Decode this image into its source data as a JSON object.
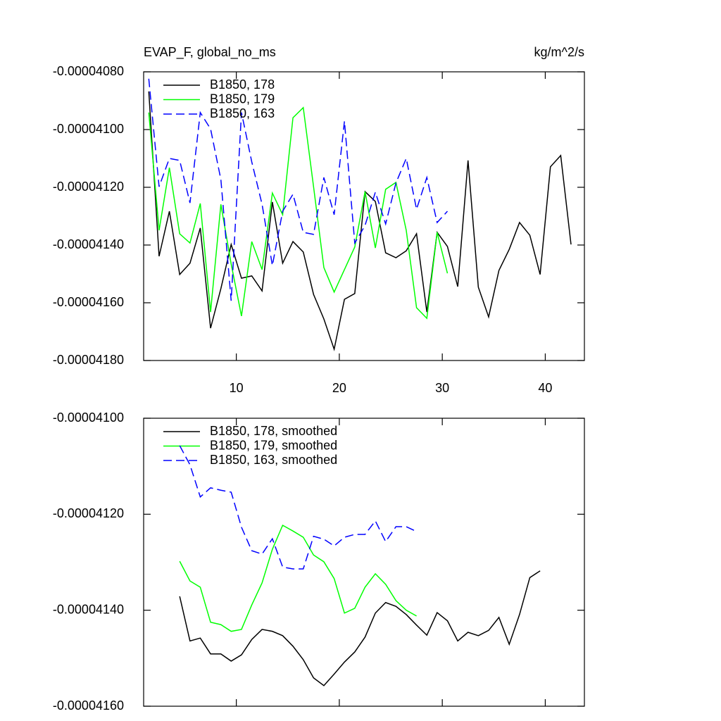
{
  "chart_data": [
    {
      "type": "line",
      "title": "EVAP_F, global_no_ms",
      "units": "kg/m^2/s",
      "xlim": [
        1,
        43.8
      ],
      "xticks": [
        10,
        20,
        30,
        40
      ],
      "xtick_labels": true,
      "ylim": [
        -4.18e-05,
        -4.08e-05
      ],
      "yticks": [
        {
          "value": -4.08e-05,
          "label": "-0.00004080"
        },
        {
          "value": -4.1e-05,
          "label": "-0.00004100"
        },
        {
          "value": -4.12e-05,
          "label": "-0.00004120"
        },
        {
          "value": -4.14e-05,
          "label": "-0.00004140"
        },
        {
          "value": -4.16e-05,
          "label": "-0.00004160"
        },
        {
          "value": -4.18e-05,
          "label": "-0.00004180"
        }
      ],
      "series": [
        {
          "name": "B1850, 178",
          "color": "#000000",
          "dash": false,
          "x": [
            1.5,
            2.5,
            3.5,
            4.5,
            5.5,
            6.5,
            7.5,
            8.5,
            9.5,
            10.5,
            11.5,
            12.5,
            13.5,
            14.5,
            15.5,
            16.5,
            17.5,
            18.5,
            19.5,
            20.5,
            21.5,
            22.5,
            23.5,
            24.5,
            25.5,
            26.5,
            27.5,
            28.5,
            29.5,
            30.5,
            31.5,
            32.5,
            33.5,
            34.5,
            35.5,
            36.5,
            37.5,
            38.5,
            39.5,
            40.5,
            41.5,
            42.5
          ],
          "values": [
            -4.0868e-05,
            -4.1439e-05,
            -4.1283e-05,
            -4.1502e-05,
            -4.1463e-05,
            -4.1341e-05,
            -4.1688e-05,
            -4.1551e-05,
            -4.1398e-05,
            -4.1515e-05,
            -4.1507e-05,
            -4.1559e-05,
            -4.1251e-05,
            -4.1463e-05,
            -4.1388e-05,
            -4.1424e-05,
            -4.1571e-05,
            -4.1656e-05,
            -4.1761e-05,
            -4.1588e-05,
            -4.1568e-05,
            -4.1215e-05,
            -4.1249e-05,
            -4.1427e-05,
            -4.1444e-05,
            -4.142e-05,
            -4.1361e-05,
            -4.1632e-05,
            -4.1356e-05,
            -4.1405e-05,
            -4.1544e-05,
            -4.1107e-05,
            -4.1546e-05,
            -4.1649e-05,
            -4.1488e-05,
            -4.1415e-05,
            -4.1322e-05,
            -4.1366e-05,
            -4.1502e-05,
            -4.1129e-05,
            -4.109e-05,
            -4.1398e-05
          ]
        },
        {
          "name": "B1850, 179",
          "color": "#00ff00",
          "dash": false,
          "x": [
            1.5,
            2.5,
            3.5,
            4.5,
            5.5,
            6.5,
            7.5,
            8.5,
            9.5,
            10.5,
            11.5,
            12.5,
            13.5,
            14.5,
            15.5,
            16.5,
            17.5,
            18.5,
            19.5,
            20.5,
            21.5,
            22.5,
            23.5,
            24.5,
            25.5,
            26.5,
            27.5,
            28.5,
            29.5,
            30.5
          ],
          "values": [
            -4.0941e-05,
            -4.1349e-05,
            -4.1132e-05,
            -4.1361e-05,
            -4.1393e-05,
            -4.1256e-05,
            -4.1632e-05,
            -4.1259e-05,
            -4.1466e-05,
            -4.1646e-05,
            -4.1388e-05,
            -4.1485e-05,
            -4.122e-05,
            -4.1295e-05,
            -4.0959e-05,
            -4.0924e-05,
            -4.1198e-05,
            -4.1478e-05,
            -4.1563e-05,
            -4.1485e-05,
            -4.1407e-05,
            -4.1215e-05,
            -4.141e-05,
            -4.1207e-05,
            -4.1183e-05,
            -4.1349e-05,
            -4.1617e-05,
            -4.1654e-05,
            -4.1356e-05,
            -4.1498e-05
          ]
        },
        {
          "name": "B1850, 163",
          "color": "#0000ff",
          "dash": true,
          "x": [
            1.5,
            2.5,
            3.5,
            4.5,
            5.5,
            6.5,
            7.5,
            8.5,
            9.5,
            10.5,
            11.5,
            12.5,
            13.5,
            14.5,
            15.5,
            16.5,
            17.5,
            18.5,
            19.5,
            20.5,
            21.5,
            22.5,
            23.5,
            24.5,
            25.5,
            26.5,
            27.5,
            28.5,
            29.5,
            30.5
          ],
          "values": [
            -4.0824e-05,
            -4.1198e-05,
            -4.11e-05,
            -4.1107e-05,
            -4.1254e-05,
            -4.0941e-05,
            -4.0998e-05,
            -4.1173e-05,
            -4.1593e-05,
            -4.0941e-05,
            -4.1112e-05,
            -4.1259e-05,
            -4.1471e-05,
            -4.1283e-05,
            -4.1224e-05,
            -4.1356e-05,
            -4.1363e-05,
            -4.1166e-05,
            -4.1295e-05,
            -4.0971e-05,
            -4.1393e-05,
            -4.1332e-05,
            -4.1217e-05,
            -4.1327e-05,
            -4.1185e-05,
            -4.11e-05,
            -4.1276e-05,
            -4.1166e-05,
            -4.1322e-05,
            -4.1283e-05
          ]
        }
      ]
    },
    {
      "type": "line",
      "xlim": [
        1,
        43.8
      ],
      "xticks": [
        10,
        20,
        30,
        40
      ],
      "xtick_labels": false,
      "ylim": [
        -4.16e-05,
        -4.1e-05
      ],
      "yticks": [
        {
          "value": -4.1e-05,
          "label": "-0.00004100"
        },
        {
          "value": -4.12e-05,
          "label": "-0.00004120"
        },
        {
          "value": -4.14e-05,
          "label": "-0.00004140"
        },
        {
          "value": -4.16e-05,
          "label": "-0.00004160"
        }
      ],
      "series": [
        {
          "name": "B1850, 178, smoothed",
          "color": "#000000",
          "dash": false,
          "x": [
            4.5,
            5.5,
            6.5,
            7.5,
            8.5,
            9.5,
            10.5,
            11.5,
            12.5,
            13.5,
            14.5,
            15.5,
            16.5,
            17.5,
            18.5,
            19.5,
            20.5,
            21.5,
            22.5,
            23.5,
            24.5,
            25.5,
            26.5,
            27.5,
            28.5,
            29.5,
            30.5,
            31.5,
            32.5,
            33.5,
            34.5,
            35.5,
            36.5,
            37.5,
            38.5,
            39.5
          ],
          "values": [
            -4.1371e-05,
            -4.1464e-05,
            -4.1458e-05,
            -4.1491e-05,
            -4.1491e-05,
            -4.1506e-05,
            -4.1493e-05,
            -4.1461e-05,
            -4.144e-05,
            -4.1444e-05,
            -4.1453e-05,
            -4.1475e-05,
            -4.1503e-05,
            -4.1541e-05,
            -4.1557e-05,
            -4.1533e-05,
            -4.1508e-05,
            -4.1487e-05,
            -4.1456e-05,
            -4.1406e-05,
            -4.1384e-05,
            -4.1392e-05,
            -4.1409e-05,
            -4.1431e-05,
            -4.1452e-05,
            -4.1405e-05,
            -4.1422e-05,
            -4.1464e-05,
            -4.1446e-05,
            -4.1453e-05,
            -4.1442e-05,
            -4.1415e-05,
            -4.1471e-05,
            -4.1409e-05,
            -4.1332e-05,
            -4.1318e-05
          ]
        },
        {
          "name": "B1850, 179, smoothed",
          "color": "#00ff00",
          "dash": false,
          "x": [
            4.5,
            5.5,
            6.5,
            7.5,
            8.5,
            9.5,
            10.5,
            11.5,
            12.5,
            13.5,
            14.5,
            15.5,
            16.5,
            17.5,
            18.5,
            19.5,
            20.5,
            21.5,
            22.5,
            23.5,
            24.5,
            25.5,
            26.5,
            27.5
          ],
          "values": [
            -4.1298e-05,
            -4.1339e-05,
            -4.1352e-05,
            -4.1425e-05,
            -4.143e-05,
            -4.1444e-05,
            -4.144e-05,
            -4.1389e-05,
            -4.1343e-05,
            -4.1273e-05,
            -4.1223e-05,
            -4.1235e-05,
            -4.1248e-05,
            -4.1285e-05,
            -4.1299e-05,
            -4.1334e-05,
            -4.1406e-05,
            -4.1396e-05,
            -4.1352e-05,
            -4.1324e-05,
            -4.1346e-05,
            -4.138e-05,
            -4.14e-05,
            -4.1412e-05
          ]
        },
        {
          "name": "B1850, 163, smoothed",
          "color": "#0000ff",
          "dash": true,
          "x": [
            4.5,
            5.5,
            6.5,
            7.5,
            8.5,
            9.5,
            10.5,
            11.5,
            12.5,
            13.5,
            14.5,
            15.5,
            16.5,
            17.5,
            18.5,
            19.5,
            20.5,
            21.5,
            22.5,
            23.5,
            24.5,
            25.5,
            26.5,
            27.5
          ],
          "values": [
            -4.1057e-05,
            -4.1097e-05,
            -4.1164e-05,
            -4.1145e-05,
            -4.115e-05,
            -4.1154e-05,
            -4.1227e-05,
            -4.1276e-05,
            -4.1283e-05,
            -4.1251e-05,
            -4.131e-05,
            -4.1314e-05,
            -4.1314e-05,
            -4.1246e-05,
            -4.1252e-05,
            -4.1266e-05,
            -4.1248e-05,
            -4.1242e-05,
            -4.1242e-05,
            -4.1214e-05,
            -4.1257e-05,
            -4.1226e-05,
            -4.1226e-05,
            -4.1236e-05
          ]
        }
      ]
    }
  ]
}
